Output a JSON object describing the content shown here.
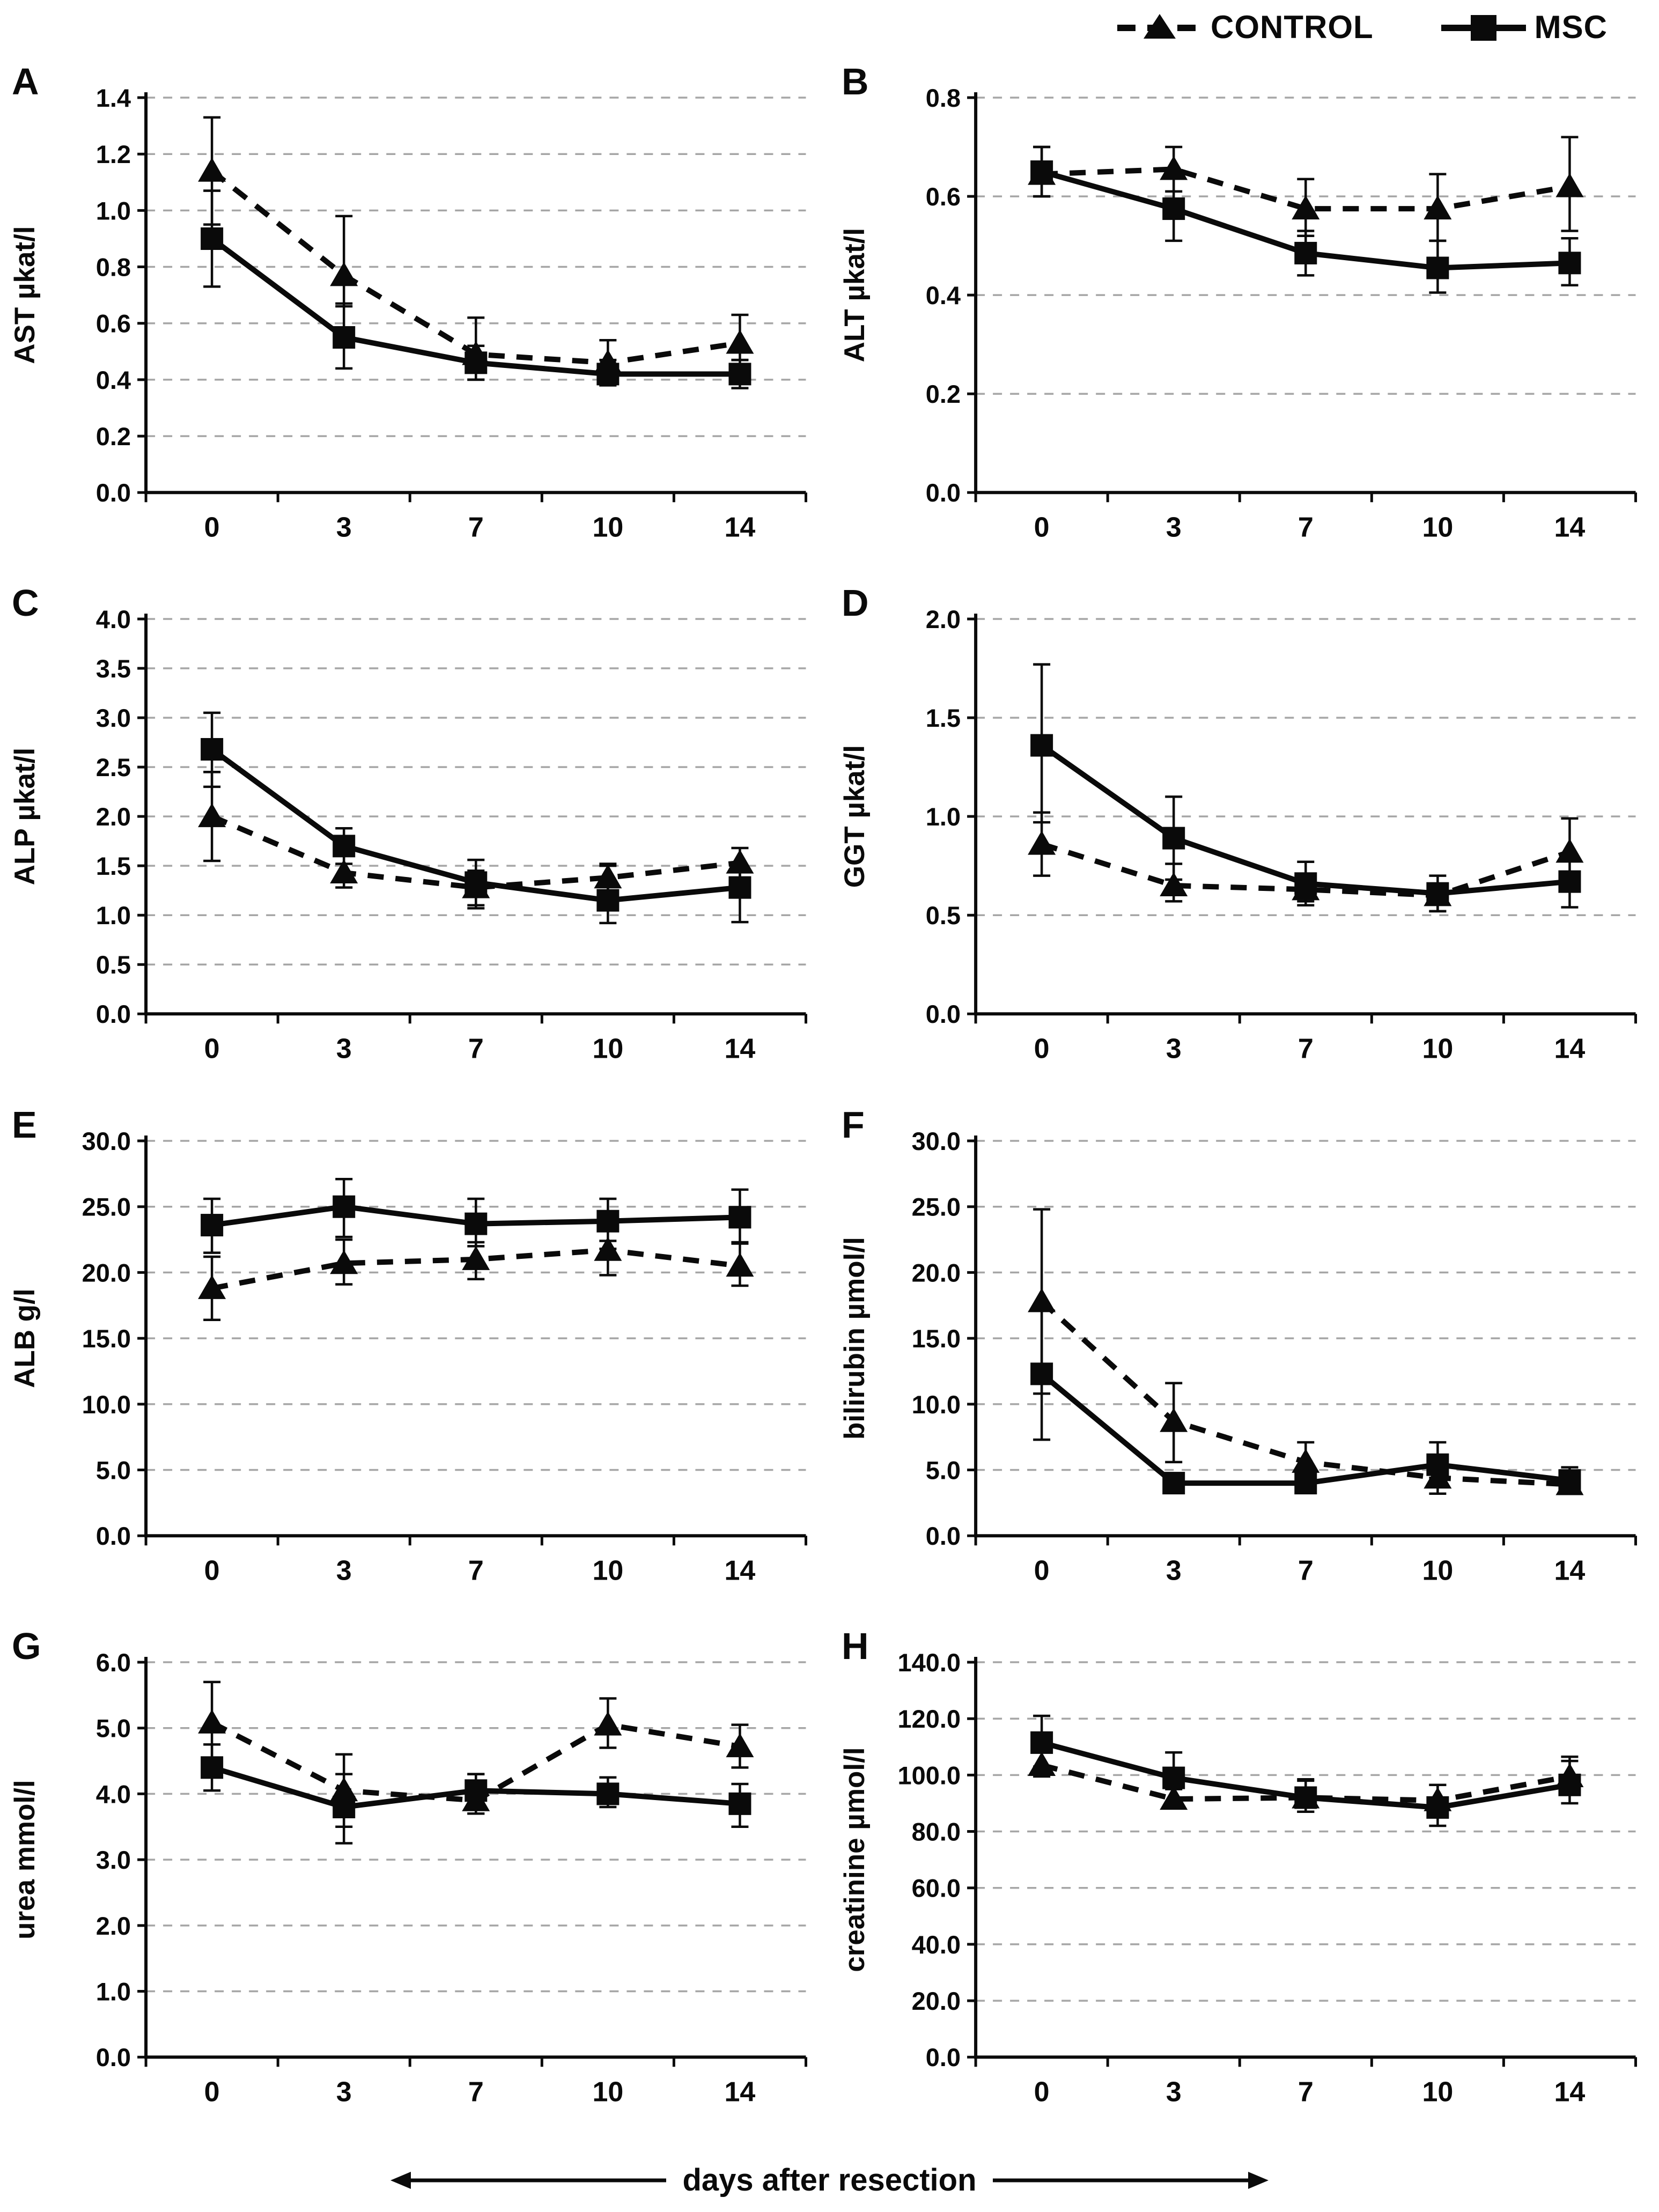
{
  "legend": {
    "control_label": "CONTROL",
    "msc_label": "MSC"
  },
  "x_axis_label": "days after resection",
  "colors": {
    "line": "#0a0a0a",
    "grid": "#a6a6a6",
    "text": "#0a0a0a"
  },
  "chart_data": [
    {
      "type": "line",
      "panel": "A",
      "ylabel": "AST µkat/l",
      "ylim": [
        0,
        1.4
      ],
      "ytick_step": 0.2,
      "ytick_decimals": 1,
      "x_labels": [
        "0",
        "3",
        "7",
        "10",
        "14"
      ],
      "series": [
        {
          "name": "CONTROL",
          "marker": "triangle",
          "line": "dashed",
          "values": [
            1.14,
            0.77,
            0.49,
            0.46,
            0.53
          ],
          "lo": [
            0.95,
            0.66,
            0.4,
            0.38,
            0.47
          ],
          "hi": [
            1.33,
            0.98,
            0.62,
            0.54,
            0.63
          ]
        },
        {
          "name": "MSC",
          "marker": "square",
          "line": "solid",
          "values": [
            0.9,
            0.55,
            0.46,
            0.42,
            0.42
          ],
          "lo": [
            0.73,
            0.44,
            0.4,
            0.38,
            0.37
          ],
          "hi": [
            1.07,
            0.67,
            0.52,
            0.47,
            0.47
          ]
        }
      ]
    },
    {
      "type": "line",
      "panel": "B",
      "ylabel": "ALT µkat/l",
      "ylim": [
        0,
        0.8
      ],
      "ytick_step": 0.2,
      "ytick_decimals": 1,
      "x_labels": [
        "0",
        "3",
        "7",
        "10",
        "14"
      ],
      "series": [
        {
          "name": "CONTROL",
          "marker": "triangle",
          "line": "dashed",
          "values": [
            0.645,
            0.655,
            0.575,
            0.575,
            0.62
          ],
          "lo": [
            0.6,
            0.61,
            0.52,
            0.51,
            0.53
          ],
          "hi": [
            0.7,
            0.7,
            0.635,
            0.645,
            0.72
          ]
        },
        {
          "name": "MSC",
          "marker": "square",
          "line": "solid",
          "values": [
            0.65,
            0.575,
            0.485,
            0.455,
            0.465
          ],
          "lo": [
            0.6,
            0.51,
            0.44,
            0.405,
            0.42
          ],
          "hi": [
            0.7,
            0.64,
            0.53,
            0.51,
            0.515
          ]
        }
      ]
    },
    {
      "type": "line",
      "panel": "C",
      "ylabel": "ALP µkat/l",
      "ylim": [
        0,
        4.0
      ],
      "ytick_step": 0.5,
      "ytick_decimals": 1,
      "x_labels": [
        "0",
        "3",
        "7",
        "10",
        "14"
      ],
      "series": [
        {
          "name": "CONTROL",
          "marker": "triangle",
          "line": "dashed",
          "values": [
            2.0,
            1.43,
            1.28,
            1.38,
            1.53
          ],
          "lo": [
            1.55,
            1.28,
            1.07,
            1.22,
            1.38
          ],
          "hi": [
            2.45,
            1.6,
            1.45,
            1.52,
            1.68
          ]
        },
        {
          "name": "MSC",
          "marker": "square",
          "line": "solid",
          "values": [
            2.68,
            1.7,
            1.33,
            1.15,
            1.28
          ],
          "lo": [
            2.3,
            1.52,
            1.1,
            0.92,
            0.93
          ],
          "hi": [
            3.05,
            1.88,
            1.56,
            1.5,
            1.45
          ]
        }
      ]
    },
    {
      "type": "line",
      "panel": "D",
      "ylabel": "GGT µkat/l",
      "ylim": [
        0,
        2.0
      ],
      "ytick_step": 0.5,
      "ytick_decimals": 1,
      "x_labels": [
        "0",
        "3",
        "7",
        "10",
        "14"
      ],
      "series": [
        {
          "name": "CONTROL",
          "marker": "triangle",
          "line": "dashed",
          "values": [
            0.86,
            0.65,
            0.63,
            0.6,
            0.82
          ],
          "lo": [
            0.7,
            0.57,
            0.55,
            0.52,
            0.68
          ],
          "hi": [
            1.02,
            0.76,
            0.7,
            0.66,
            0.99
          ]
        },
        {
          "name": "MSC",
          "marker": "square",
          "line": "solid",
          "values": [
            1.36,
            0.89,
            0.66,
            0.61,
            0.67
          ],
          "lo": [
            0.97,
            0.68,
            0.57,
            0.52,
            0.54
          ],
          "hi": [
            1.77,
            1.1,
            0.77,
            0.7,
            0.72
          ]
        }
      ]
    },
    {
      "type": "line",
      "panel": "E",
      "ylabel": "ALB g/l",
      "ylim": [
        0,
        30.0
      ],
      "ytick_step": 5.0,
      "ytick_decimals": 1,
      "x_labels": [
        "0",
        "3",
        "7",
        "10",
        "14"
      ],
      "series": [
        {
          "name": "CONTROL",
          "marker": "triangle",
          "line": "dashed",
          "values": [
            18.8,
            20.7,
            21.0,
            21.7,
            20.5
          ],
          "lo": [
            16.4,
            19.1,
            19.5,
            19.8,
            19.0
          ],
          "hi": [
            21.2,
            22.5,
            22.3,
            22.4,
            22.2
          ]
        },
        {
          "name": "MSC",
          "marker": "square",
          "line": "solid",
          "values": [
            23.6,
            25.0,
            23.7,
            23.9,
            24.2
          ],
          "lo": [
            21.5,
            22.7,
            22.0,
            21.8,
            22.3
          ],
          "hi": [
            25.6,
            27.1,
            25.6,
            25.6,
            26.3
          ]
        }
      ]
    },
    {
      "type": "line",
      "panel": "F",
      "ylabel": "bilirubin µmol/l",
      "ylim": [
        0,
        30.0
      ],
      "ytick_step": 5.0,
      "ytick_decimals": 1,
      "x_labels": [
        "0",
        "3",
        "7",
        "10",
        "14"
      ],
      "series": [
        {
          "name": "CONTROL",
          "marker": "triangle",
          "line": "dashed",
          "values": [
            17.8,
            8.7,
            5.6,
            4.4,
            3.9
          ],
          "lo": [
            10.8,
            5.6,
            4.3,
            3.2,
            3.2
          ],
          "hi": [
            24.8,
            11.6,
            7.1,
            5.3,
            4.8
          ]
        },
        {
          "name": "MSC",
          "marker": "square",
          "line": "solid",
          "values": [
            12.3,
            4.0,
            4.0,
            5.4,
            4.2
          ],
          "lo": [
            7.3,
            3.5,
            3.4,
            4.4,
            3.3
          ],
          "hi": [
            17.3,
            4.6,
            4.7,
            7.1,
            5.2
          ]
        }
      ]
    },
    {
      "type": "line",
      "panel": "G",
      "ylabel": "urea mmol/l",
      "ylim": [
        0,
        6.0
      ],
      "ytick_step": 1.0,
      "ytick_decimals": 1,
      "x_labels": [
        "0",
        "3",
        "7",
        "10",
        "14"
      ],
      "series": [
        {
          "name": "CONTROL",
          "marker": "triangle",
          "line": "dashed",
          "values": [
            5.08,
            4.05,
            3.9,
            5.05,
            4.72
          ],
          "lo": [
            4.45,
            3.5,
            3.7,
            4.7,
            4.4
          ],
          "hi": [
            5.7,
            4.6,
            4.3,
            5.45,
            5.05
          ]
        },
        {
          "name": "MSC",
          "marker": "square",
          "line": "solid",
          "values": [
            4.4,
            3.8,
            4.05,
            4.0,
            3.85
          ],
          "lo": [
            4.05,
            3.25,
            3.7,
            3.8,
            3.5
          ],
          "hi": [
            4.75,
            4.3,
            4.3,
            4.25,
            4.15
          ]
        }
      ]
    },
    {
      "type": "line",
      "panel": "H",
      "ylabel": "creatinine  µmol/l",
      "ylim": [
        0,
        140.0
      ],
      "ytick_step": 20.0,
      "ytick_decimals": 1,
      "x_labels": [
        "0",
        "3",
        "7",
        "10",
        "14"
      ],
      "series": [
        {
          "name": "CONTROL",
          "marker": "triangle",
          "line": "dashed",
          "values": [
            103.5,
            91.5,
            92.0,
            91.0,
            99.5
          ],
          "lo": [
            99.5,
            88.5,
            87.0,
            85.0,
            94.0
          ],
          "hi": [
            108.0,
            95.0,
            98.5,
            96.5,
            105.0
          ]
        },
        {
          "name": "MSC",
          "marker": "square",
          "line": "solid",
          "values": [
            111.5,
            99.0,
            92.0,
            88.5,
            96.5
          ],
          "lo": [
            103.0,
            90.0,
            87.0,
            82.0,
            90.0
          ],
          "hi": [
            121.0,
            108.0,
            98.0,
            96.5,
            106.5
          ]
        }
      ]
    }
  ]
}
